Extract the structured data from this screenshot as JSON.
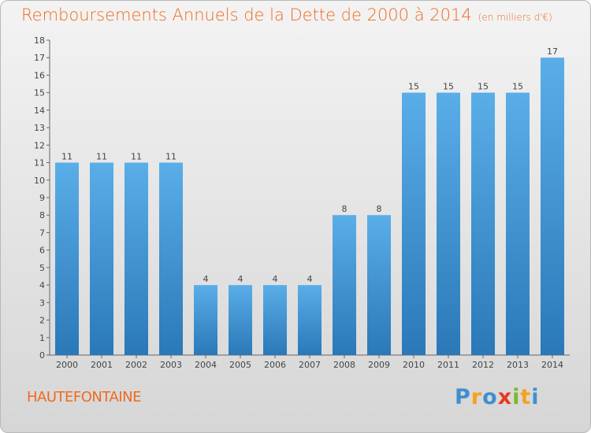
{
  "header": {
    "title": "Remboursements Annuels de la Dette de 2000 à 2014",
    "unit": "(en milliers d'€)"
  },
  "footer": {
    "commune": "HAUTEFONTAINE",
    "brand": [
      "P",
      "r",
      "o",
      "x",
      "i",
      "t",
      "i"
    ]
  },
  "colors": {
    "accent": "#f06a1e",
    "bar_light": "#5aaee8",
    "bar_dark": "#2a78b8"
  },
  "chart_data": {
    "type": "bar",
    "title": "Remboursements Annuels de la Dette de 2000 à 2014",
    "xlabel": "",
    "ylabel": "(en milliers d'€)",
    "categories": [
      "2000",
      "2001",
      "2002",
      "2003",
      "2004",
      "2005",
      "2006",
      "2007",
      "2008",
      "2009",
      "2010",
      "2011",
      "2012",
      "2013",
      "2014"
    ],
    "values": [
      11,
      11,
      11,
      11,
      4,
      4,
      4,
      4,
      8,
      8,
      15,
      15,
      15,
      15,
      17
    ],
    "ylim": [
      0,
      18
    ],
    "yticks": [
      "0",
      "1",
      "2",
      "3",
      "4",
      "5",
      "6",
      "7",
      "8",
      "9",
      "10",
      "11",
      "12",
      "13",
      "14",
      "15",
      "16",
      "17",
      "18"
    ],
    "grid": false
  }
}
